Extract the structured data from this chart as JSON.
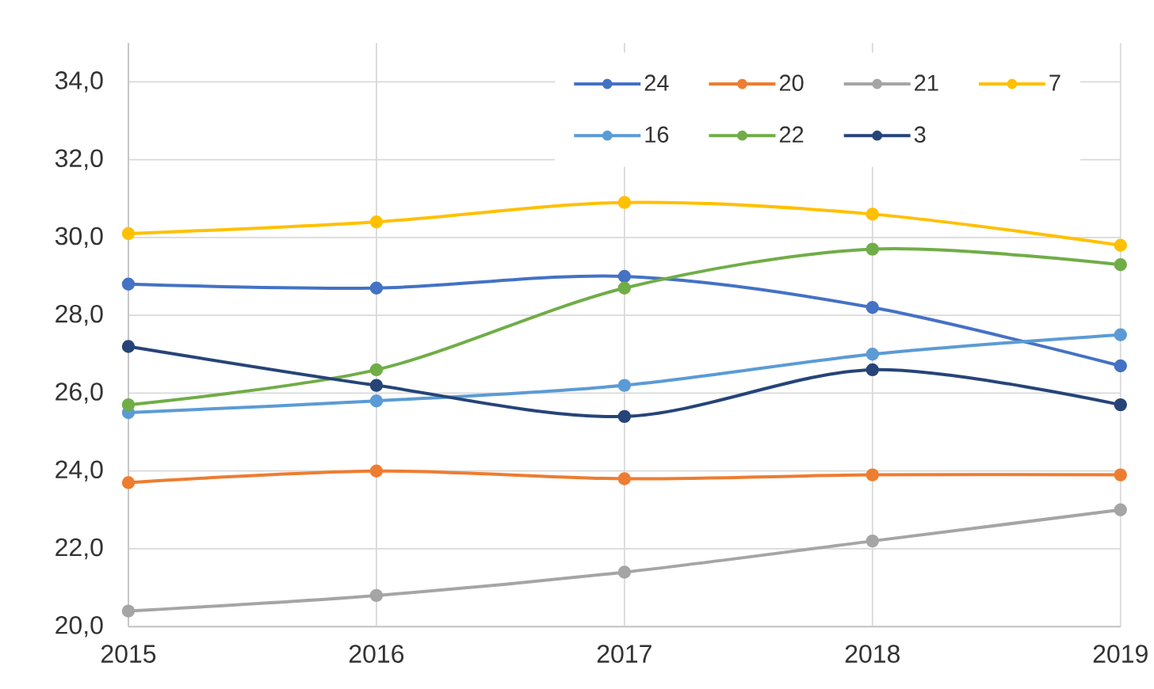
{
  "chart_data": {
    "type": "line",
    "x": [
      2015,
      2016,
      2017,
      2018,
      2019
    ],
    "xlim": [
      2015,
      2019
    ],
    "xticks": [
      2015,
      2016,
      2017,
      2018,
      2019
    ],
    "ylim": [
      20,
      35
    ],
    "yticks": [
      {
        "value": 20,
        "label": "20,0"
      },
      {
        "value": 22,
        "label": "22,0"
      },
      {
        "value": 24,
        "label": "24,0"
      },
      {
        "value": 26,
        "label": "26,0"
      },
      {
        "value": 28,
        "label": "28,0"
      },
      {
        "value": 30,
        "label": "30,0"
      },
      {
        "value": 32,
        "label": "32,0"
      },
      {
        "value": 34,
        "label": "34,0"
      }
    ],
    "grid": true,
    "legend": "top right",
    "marker": "circle",
    "line_style": "solid",
    "series": [
      {
        "name": "24",
        "color": "#4472c4",
        "values": [
          28.8,
          28.7,
          29.0,
          28.2,
          26.7
        ]
      },
      {
        "name": "20",
        "color": "#ed7d31",
        "values": [
          23.7,
          24.0,
          23.8,
          23.9,
          23.9
        ]
      },
      {
        "name": "21",
        "color": "#a5a5a5",
        "values": [
          20.4,
          20.8,
          21.4,
          22.2,
          23.0
        ]
      },
      {
        "name": "7",
        "color": "#ffc000",
        "values": [
          30.1,
          30.4,
          30.9,
          30.6,
          29.8
        ]
      },
      {
        "name": "16",
        "color": "#5b9bd5",
        "values": [
          25.5,
          25.8,
          26.2,
          27.0,
          27.5
        ]
      },
      {
        "name": "22",
        "color": "#70ad47",
        "values": [
          25.7,
          26.6,
          28.7,
          29.7,
          29.3
        ]
      },
      {
        "name": "3",
        "color": "#264478",
        "values": [
          27.2,
          26.2,
          25.4,
          26.6,
          25.7
        ]
      }
    ]
  }
}
